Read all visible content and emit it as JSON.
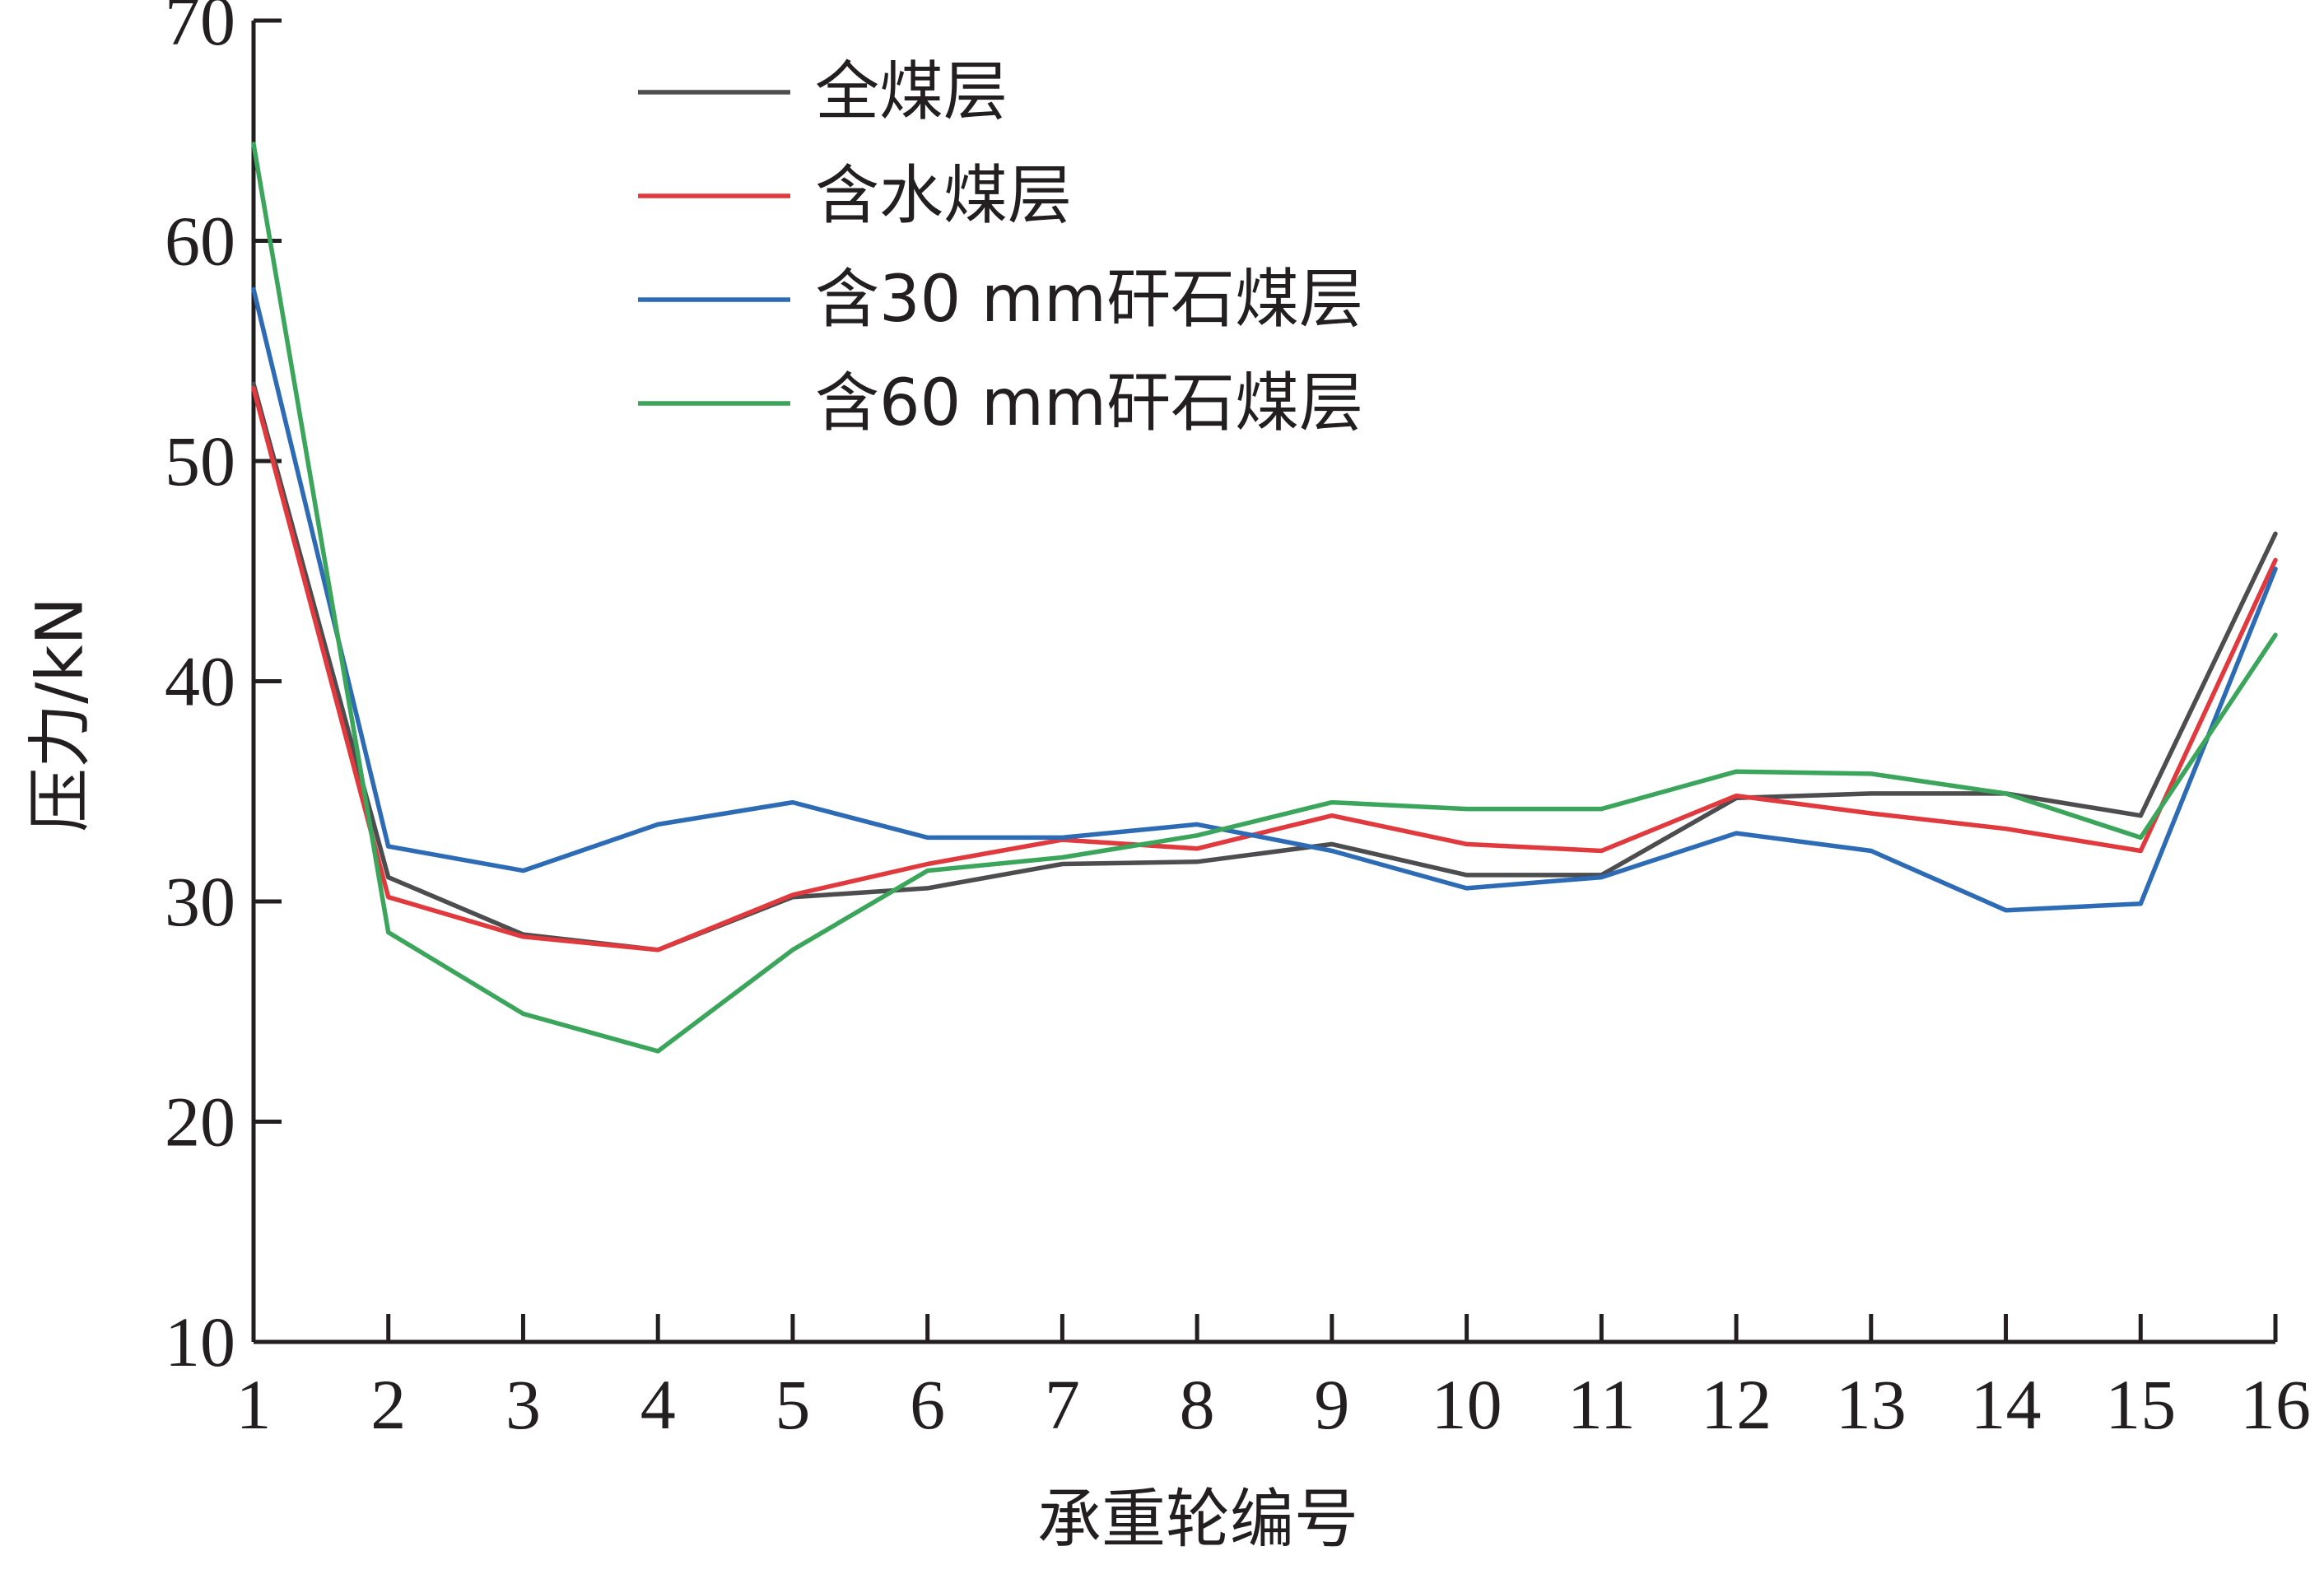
{
  "chart_data": {
    "type": "line",
    "xlabel": "承重轮编号",
    "ylabel": "压力/kN",
    "x": [
      1,
      2,
      3,
      4,
      5,
      6,
      7,
      8,
      9,
      10,
      11,
      12,
      13,
      14,
      15,
      16
    ],
    "xticks": [
      "1",
      "2",
      "3",
      "4",
      "5",
      "6",
      "7",
      "8",
      "9",
      "10",
      "11",
      "12",
      "13",
      "14",
      "15",
      "16"
    ],
    "ylim": [
      10,
      70
    ],
    "yticks": [
      "10",
      "20",
      "30",
      "40",
      "50",
      "60",
      "70"
    ],
    "grid": false,
    "legend_position": "top-center",
    "series": [
      {
        "name": "全煤层",
        "color": "#4d4d4f",
        "values": [
          53.5,
          31.1,
          28.5,
          27.8,
          30.2,
          30.6,
          31.7,
          31.8,
          32.6,
          31.2,
          31.2,
          34.7,
          34.9,
          34.9,
          33.9,
          46.7
        ]
      },
      {
        "name": "含水煤层",
        "color": "#e03a3e",
        "values": [
          53.3,
          30.2,
          28.4,
          27.8,
          30.3,
          31.7,
          32.8,
          32.4,
          33.9,
          32.6,
          32.3,
          34.8,
          34.0,
          33.3,
          32.3,
          45.5
        ]
      },
      {
        "name": "含30 mm矸石煤层",
        "color": "#2d6bb5",
        "values": [
          57.8,
          32.5,
          31.4,
          33.5,
          34.5,
          32.9,
          32.9,
          33.5,
          32.3,
          30.6,
          31.1,
          33.1,
          32.3,
          29.6,
          29.9,
          45.1
        ]
      },
      {
        "name": "含60 mm矸石煤层",
        "color": "#3aa55b",
        "values": [
          64.4,
          28.6,
          24.9,
          23.2,
          27.8,
          31.4,
          32.0,
          33.0,
          34.5,
          34.2,
          34.2,
          35.9,
          35.8,
          34.9,
          32.9,
          42.1
        ]
      }
    ]
  }
}
